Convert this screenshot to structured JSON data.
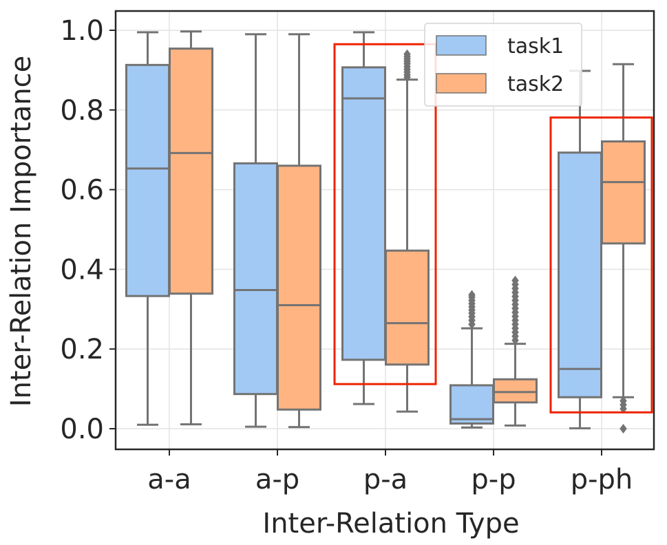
{
  "chart_data": {
    "type": "boxplot",
    "xlabel": "Inter-Relation Type",
    "ylabel": "Inter-Relation Importance",
    "ylim": [
      -0.05,
      1.05
    ],
    "yticks": [
      0.0,
      0.2,
      0.4,
      0.6,
      0.8,
      1.0
    ],
    "ytick_labels": [
      "0.0",
      "0.2",
      "0.4",
      "0.6",
      "0.8",
      "1.0"
    ],
    "categories": [
      "a-a",
      "a-p",
      "p-a",
      "p-p",
      "p-ph"
    ],
    "grid": true,
    "legend_position": "top-right",
    "series": [
      {
        "name": "task1",
        "color": "#a1c9f4",
        "boxes": [
          {
            "whislo": 0.01,
            "q1": 0.333,
            "med": 0.653,
            "q3": 0.913,
            "whishi": 0.995,
            "fliers": []
          },
          {
            "whislo": 0.005,
            "q1": 0.087,
            "med": 0.348,
            "q3": 0.666,
            "whishi": 0.99,
            "fliers": []
          },
          {
            "whislo": 0.062,
            "q1": 0.173,
            "med": 0.829,
            "q3": 0.907,
            "whishi": 0.995,
            "fliers": []
          },
          {
            "whislo": 0.003,
            "q1": 0.013,
            "med": 0.024,
            "q3": 0.109,
            "whishi": 0.252,
            "fliers": [
              0.262,
              0.272,
              0.281,
              0.29,
              0.298,
              0.306,
              0.314,
              0.322,
              0.33,
              0.336
            ]
          },
          {
            "whislo": 0.001,
            "q1": 0.079,
            "med": 0.15,
            "q3": 0.693,
            "whishi": 0.898,
            "fliers": []
          }
        ]
      },
      {
        "name": "task2",
        "color": "#ffb482",
        "boxes": [
          {
            "whislo": 0.011,
            "q1": 0.339,
            "med": 0.692,
            "q3": 0.954,
            "whishi": 0.997,
            "fliers": []
          },
          {
            "whislo": 0.004,
            "q1": 0.048,
            "med": 0.31,
            "q3": 0.66,
            "whishi": 0.99,
            "fliers": []
          },
          {
            "whislo": 0.043,
            "q1": 0.161,
            "med": 0.265,
            "q3": 0.447,
            "whishi": 0.876,
            "fliers": [
              0.882,
              0.888,
              0.895,
              0.902,
              0.909,
              0.916,
              0.922,
              0.928,
              0.934,
              0.94
            ]
          },
          {
            "whislo": 0.008,
            "q1": 0.066,
            "med": 0.092,
            "q3": 0.124,
            "whishi": 0.213,
            "fliers": [
              0.222,
              0.232,
              0.242,
              0.252,
              0.262,
              0.272,
              0.282,
              0.292,
              0.302,
              0.312,
              0.322,
              0.332,
              0.342,
              0.352,
              0.362,
              0.372
            ]
          },
          {
            "whislo": 0.079,
            "q1": 0.465,
            "med": 0.619,
            "q3": 0.721,
            "whishi": 0.915,
            "fliers": [
              0.0,
              0.05,
              0.06,
              0.07
            ]
          }
        ]
      }
    ],
    "highlight_boxes": [
      {
        "category": "p-a",
        "y_range": [
          0.112,
          0.965
        ],
        "color": "#ee2200"
      },
      {
        "category": "p-ph",
        "y_range": [
          0.041,
          0.781
        ],
        "color": "#ee2200"
      }
    ]
  }
}
